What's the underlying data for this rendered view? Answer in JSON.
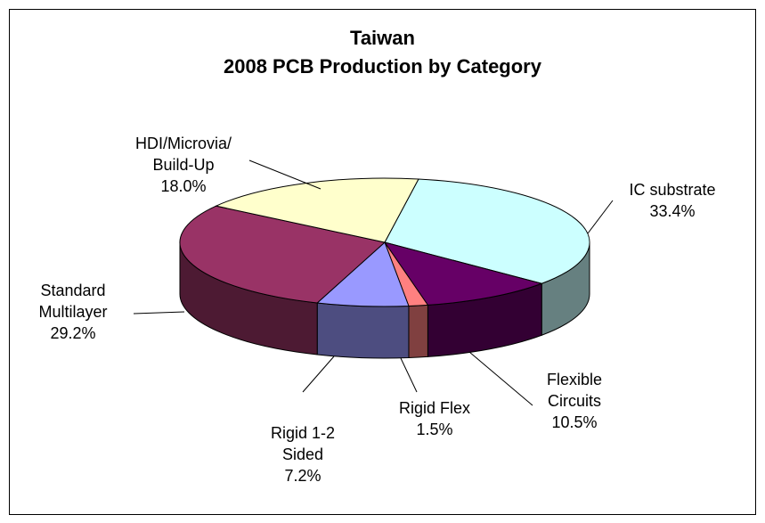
{
  "chart_data": {
    "type": "pie",
    "three_d": true,
    "title": "Taiwan",
    "subtitle": "2008 PCB Production by Category",
    "categories": [
      "IC substrate",
      "Flexible\nCircuits",
      "Rigid Flex",
      "Rigid 1-2\nSided",
      "Standard\nMultilayer",
      "HDI/Microvia/\nBuild-Up"
    ],
    "values": [
      33.4,
      10.5,
      1.5,
      7.2,
      29.2,
      18.0
    ],
    "value_labels": [
      "33.4%",
      "10.5%",
      "1.5%",
      "7.2%",
      "29.2%",
      "18.0%"
    ],
    "colors": [
      "#ccffff",
      "#660066",
      "#ff8080",
      "#9999ff",
      "#993366",
      "#ffffcc"
    ]
  }
}
